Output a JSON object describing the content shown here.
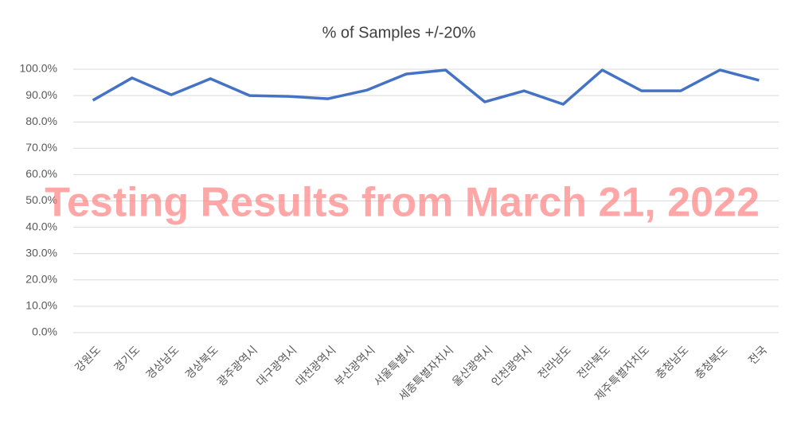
{
  "chart_data": {
    "type": "line",
    "title": "% of Samples +/-20%",
    "watermark": "Testing Results from March 21, 2022",
    "categories": [
      "강원도",
      "경기도",
      "경상남도",
      "경상북도",
      "광주광역시",
      "대구광역시",
      "대전광역시",
      "부산광역시",
      "서울특별시",
      "세종특별자치시",
      "울산광역시",
      "인천광역시",
      "전라남도",
      "전라북도",
      "제주특별자치도",
      "충청남도",
      "충청북도",
      "전국"
    ],
    "values": [
      88.2,
      96.7,
      90.3,
      96.4,
      90.0,
      89.7,
      88.8,
      92.1,
      98.2,
      99.7,
      87.6,
      91.8,
      86.7,
      99.7,
      91.8,
      91.8,
      99.7,
      95.8
    ],
    "color": "#4472c4",
    "ylim": [
      0,
      100
    ],
    "yticks": [
      {
        "value": 0,
        "label": "0.0%"
      },
      {
        "value": 10,
        "label": "10.0%"
      },
      {
        "value": 20,
        "label": "20.0%"
      },
      {
        "value": 30,
        "label": "30.0%"
      },
      {
        "value": 40,
        "label": "40.0%"
      },
      {
        "value": 50,
        "label": "50.0%"
      },
      {
        "value": 60,
        "label": "60.0%"
      },
      {
        "value": 70,
        "label": "70.0%"
      },
      {
        "value": 80,
        "label": "80.0%"
      },
      {
        "value": 90,
        "label": "90.0%"
      },
      {
        "value": 100,
        "label": "100.0%"
      }
    ],
    "grid": true
  }
}
